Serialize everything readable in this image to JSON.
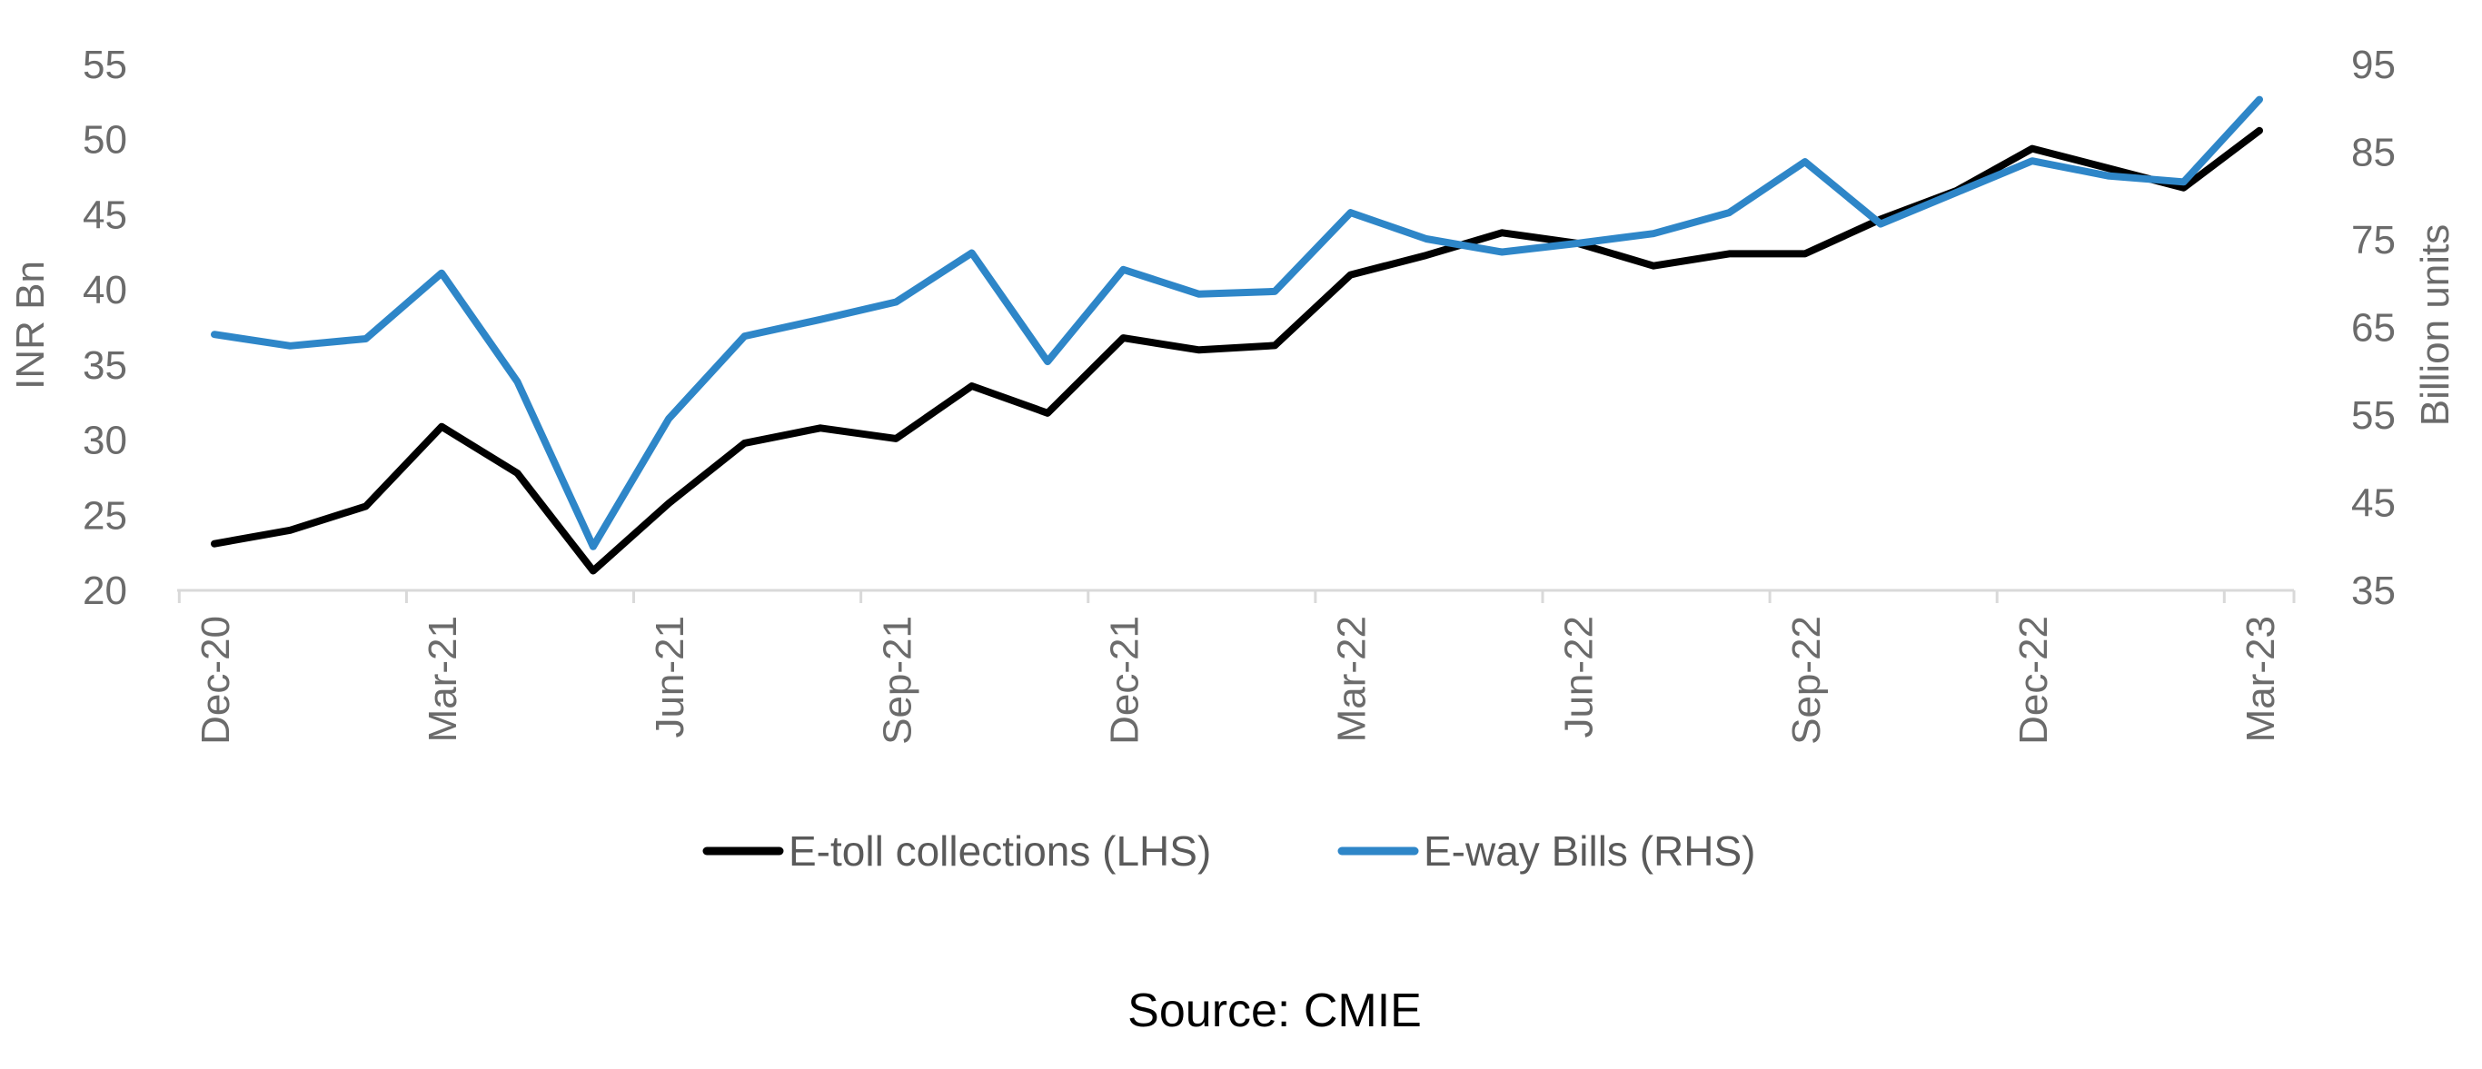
{
  "chart_data": {
    "type": "line",
    "title": "",
    "source": "Source: CMIE",
    "ylabel_left": "INR Bn",
    "ylabel_right": "Billion  units",
    "ylim_left": [
      20,
      55
    ],
    "ylim_right": [
      35,
      95
    ],
    "yticks_left": [
      "20",
      "25",
      "30",
      "35",
      "40",
      "45",
      "50",
      "55"
    ],
    "yticks_right": [
      "35",
      "45",
      "55",
      "65",
      "75",
      "85",
      "95"
    ],
    "x": [
      "Dec-20",
      "Jan-21",
      "Feb-21",
      "Mar-21",
      "Apr-21",
      "May-21",
      "Jun-21",
      "Jul-21",
      "Aug-21",
      "Sep-21",
      "Oct-21",
      "Nov-21",
      "Dec-21",
      "Jan-22",
      "Feb-22",
      "Mar-22",
      "Apr-22",
      "May-22",
      "Jun-22",
      "Jul-22",
      "Aug-22",
      "Sep-22",
      "Oct-22",
      "Nov-22",
      "Dec-22",
      "Jan-23",
      "Feb-23",
      "Mar-23"
    ],
    "xtick_labels": [
      "Dec-20",
      "Mar-21",
      "Jun-21",
      "Sep-21",
      "Dec-21",
      "Mar-22",
      "Jun-22",
      "Sep-22",
      "Dec-22",
      "Mar-23"
    ],
    "grid": false,
    "legend_position": "bottom",
    "series": [
      {
        "name": "E-toll collections (LHS)",
        "axis": "left",
        "color": "#000000",
        "values": [
          23.1,
          24.0,
          25.6,
          30.9,
          27.8,
          21.3,
          25.8,
          29.8,
          30.8,
          30.1,
          33.6,
          31.8,
          36.8,
          36.0,
          36.3,
          41.0,
          42.3,
          43.8,
          43.1,
          41.6,
          42.4,
          42.4,
          44.7,
          46.6,
          49.4,
          48.1,
          46.8,
          50.6
        ]
      },
      {
        "name": "E-way Bills (RHS)",
        "axis": "right",
        "color": "#2e86c8",
        "values": [
          64.2,
          62.9,
          63.7,
          71.2,
          58.8,
          40.0,
          54.6,
          64.0,
          65.9,
          67.9,
          73.5,
          61.1,
          71.6,
          68.8,
          69.1,
          78.1,
          75.1,
          73.6,
          74.6,
          75.7,
          78.1,
          83.9,
          76.8,
          80.4,
          84.0,
          82.3,
          81.6,
          91.0
        ]
      }
    ]
  }
}
